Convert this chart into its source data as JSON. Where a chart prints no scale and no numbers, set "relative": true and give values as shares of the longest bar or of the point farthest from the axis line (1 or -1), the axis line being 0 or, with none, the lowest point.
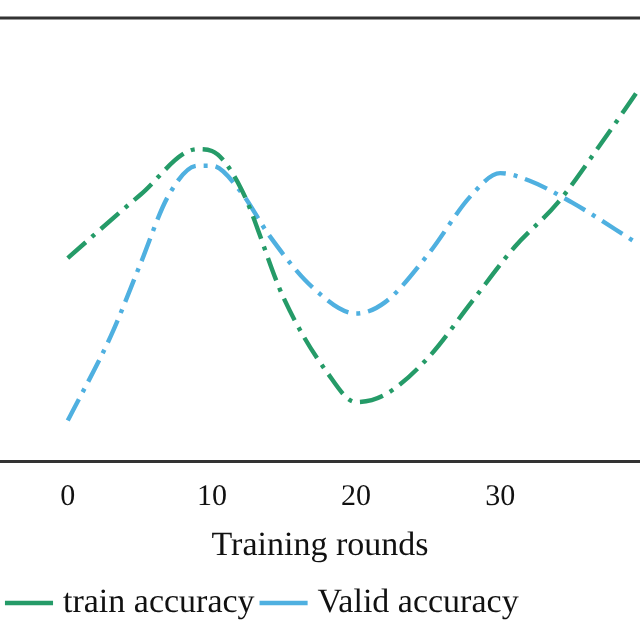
{
  "chart_data": {
    "type": "line",
    "xlabel": "Training rounds",
    "relative": true,
    "xlim": [
      -4.7,
      39.7
    ],
    "xticks": [
      0,
      10,
      20,
      30
    ],
    "grid": false,
    "legend": "bottom left",
    "line_style": "dashed",
    "series": [
      {
        "name": "train accuracy",
        "color": "#259b68",
        "x": [
          0,
          5,
          9,
          10,
          12,
          15,
          18,
          20,
          22,
          25,
          28,
          31,
          34,
          37,
          39.5
        ],
        "values": [
          0.55,
          0.72,
          0.845,
          0.84,
          0.74,
          0.44,
          0.24,
          0.16,
          0.18,
          0.28,
          0.43,
          0.58,
          0.7,
          0.86,
          1.0
        ]
      },
      {
        "name": "Valid accuracy",
        "color": "#4fb0e0",
        "x": [
          0,
          3,
          5,
          7,
          9,
          10,
          12,
          14,
          17,
          20,
          22,
          25,
          28,
          30,
          32,
          35,
          39.5
        ],
        "values": [
          0.11,
          0.34,
          0.53,
          0.72,
          0.8,
          0.8,
          0.73,
          0.61,
          0.47,
          0.4,
          0.43,
          0.56,
          0.72,
          0.78,
          0.76,
          0.7,
          0.59
        ]
      }
    ]
  }
}
